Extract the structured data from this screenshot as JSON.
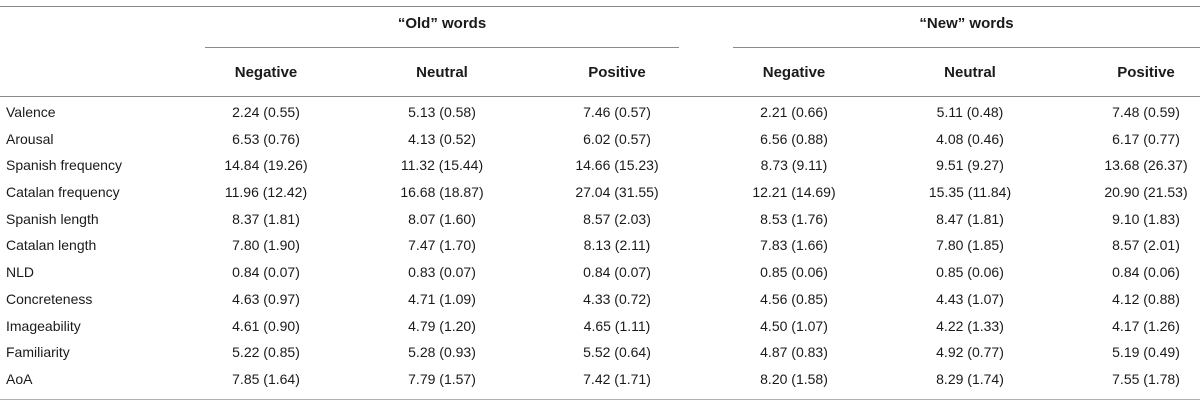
{
  "groups": {
    "old": "“Old” words",
    "new": "“New” words"
  },
  "columns": [
    "Negative",
    "Neutral",
    "Positive",
    "Negative",
    "Neutral",
    "Positive"
  ],
  "rows": [
    {
      "label": "Valence",
      "values": [
        "2.24 (0.55)",
        "5.13 (0.58)",
        "7.46 (0.57)",
        "2.21 (0.66)",
        "5.11 (0.48)",
        "7.48 (0.59)"
      ]
    },
    {
      "label": "Arousal",
      "values": [
        "6.53 (0.76)",
        "4.13 (0.52)",
        "6.02 (0.57)",
        "6.56 (0.88)",
        "4.08 (0.46)",
        "6.17 (0.77)"
      ]
    },
    {
      "label": "Spanish frequency",
      "values": [
        "14.84 (19.26)",
        "11.32 (15.44)",
        "14.66 (15.23)",
        "8.73 (9.11)",
        "9.51 (9.27)",
        "13.68 (26.37)"
      ]
    },
    {
      "label": "Catalan frequency",
      "values": [
        "11.96 (12.42)",
        "16.68 (18.87)",
        "27.04 (31.55)",
        "12.21 (14.69)",
        "15.35 (11.84)",
        "20.90 (21.53)"
      ]
    },
    {
      "label": "Spanish length",
      "values": [
        "8.37 (1.81)",
        "8.07 (1.60)",
        "8.57 (2.03)",
        "8.53 (1.76)",
        "8.47 (1.81)",
        "9.10 (1.83)"
      ]
    },
    {
      "label": "Catalan length",
      "values": [
        "7.80 (1.90)",
        "7.47 (1.70)",
        "8.13 (2.11)",
        "7.83 (1.66)",
        "7.80 (1.85)",
        "8.57 (2.01)"
      ]
    },
    {
      "label": "NLD",
      "values": [
        "0.84 (0.07)",
        "0.83 (0.07)",
        "0.84 (0.07)",
        "0.85 (0.06)",
        "0.85 (0.06)",
        "0.84 (0.06)"
      ]
    },
    {
      "label": "Concreteness",
      "values": [
        "4.63 (0.97)",
        "4.71 (1.09)",
        "4.33 (0.72)",
        "4.56 (0.85)",
        "4.43 (1.07)",
        "4.12 (0.88)"
      ]
    },
    {
      "label": "Imageability",
      "values": [
        "4.61 (0.90)",
        "4.79 (1.20)",
        "4.65 (1.11)",
        "4.50 (1.07)",
        "4.22 (1.33)",
        "4.17 (1.26)"
      ]
    },
    {
      "label": "Familiarity",
      "values": [
        "5.22 (0.85)",
        "5.28 (0.93)",
        "5.52 (0.64)",
        "4.87 (0.83)",
        "4.92 (0.77)",
        "5.19 (0.49)"
      ]
    },
    {
      "label": "AoA",
      "values": [
        "7.85 (1.64)",
        "7.79 (1.57)",
        "7.42 (1.71)",
        "8.20 (1.58)",
        "8.29 (1.74)",
        "7.55 (1.78)"
      ]
    }
  ]
}
